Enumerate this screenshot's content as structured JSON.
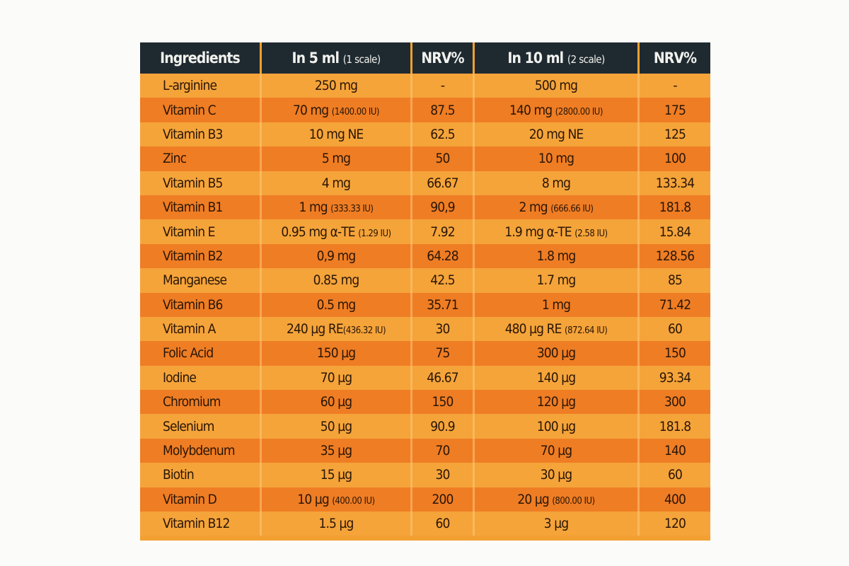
{
  "table": {
    "headers": [
      {
        "main": "Ingredients",
        "sub": ""
      },
      {
        "main": "In 5 ml ",
        "sub": "(1 scale)"
      },
      {
        "main": "NRV%",
        "sub": ""
      },
      {
        "main": "In 10 ml ",
        "sub": "(2 scale)"
      },
      {
        "main": "NRV%",
        "sub": ""
      }
    ],
    "rows": [
      {
        "ingredient": "L-arginine",
        "amount5": "250 mg",
        "amount5_note": "",
        "nrv5": "-",
        "amount10": "500 mg",
        "amount10_note": "",
        "nrv10": "-"
      },
      {
        "ingredient": "Vitamin C",
        "amount5": "70 mg ",
        "amount5_note": "(1400.00 IU)",
        "nrv5": "87.5",
        "amount10": "140 mg ",
        "amount10_note": "(2800.00 IU)",
        "nrv10": "175"
      },
      {
        "ingredient": "Vitamin B3",
        "amount5": "10 mg NE",
        "amount5_note": "",
        "nrv5": "62.5",
        "amount10": "20 mg NE",
        "amount10_note": "",
        "nrv10": "125"
      },
      {
        "ingredient": "Zinc",
        "amount5": "5 mg",
        "amount5_note": "",
        "nrv5": "50",
        "amount10": "10 mg",
        "amount10_note": "",
        "nrv10": "100"
      },
      {
        "ingredient": "Vitamin B5",
        "amount5": "4 mg",
        "amount5_note": "",
        "nrv5": "66.67",
        "amount10": "8 mg",
        "amount10_note": "",
        "nrv10": "133.34"
      },
      {
        "ingredient": "Vitamin B1",
        "amount5": "1 mg ",
        "amount5_note": "(333.33 IU)",
        "nrv5": "90,9",
        "amount10": "2 mg ",
        "amount10_note": "(666.66 IU)",
        "nrv10": "181.8"
      },
      {
        "ingredient": "Vitamin E",
        "amount5": "0.95 mg α-TE ",
        "amount5_note": "(1.29 IU)",
        "nrv5": "7.92",
        "amount10": "1.9 mg α-TE ",
        "amount10_note": "(2.58 IU)",
        "nrv10": "15.84"
      },
      {
        "ingredient": "Vitamin B2",
        "amount5": "0,9 mg",
        "amount5_note": "",
        "nrv5": "64.28",
        "amount10": "1.8 mg",
        "amount10_note": "",
        "nrv10": "128.56"
      },
      {
        "ingredient": "Manganese",
        "amount5": "0.85 mg",
        "amount5_note": "",
        "nrv5": "42.5",
        "amount10": "1.7 mg",
        "amount10_note": "",
        "nrv10": "85"
      },
      {
        "ingredient": "Vitamin B6",
        "amount5": "0.5 mg",
        "amount5_note": "",
        "nrv5": "35.71",
        "amount10": "1 mg",
        "amount10_note": "",
        "nrv10": "71.42"
      },
      {
        "ingredient": "Vitamin A",
        "amount5": "240 µg RE",
        "amount5_note": "(436.32 IU)",
        "nrv5": "30",
        "amount10": "480 µg RE ",
        "amount10_note": "(872.64 IU)",
        "nrv10": "60"
      },
      {
        "ingredient": "Folic Acid",
        "amount5": "150 µg",
        "amount5_note": "",
        "nrv5": "75",
        "amount10": "300 µg",
        "amount10_note": "",
        "nrv10": "150"
      },
      {
        "ingredient": "Iodine",
        "amount5": "70 µg",
        "amount5_note": "",
        "nrv5": "46.67",
        "amount10": "140 µg",
        "amount10_note": "",
        "nrv10": "93.34"
      },
      {
        "ingredient": "Chromium",
        "amount5": "60 µg",
        "amount5_note": "",
        "nrv5": "150",
        "amount10": "120 µg",
        "amount10_note": "",
        "nrv10": "300"
      },
      {
        "ingredient": "Selenium",
        "amount5": "50 µg",
        "amount5_note": "",
        "nrv5": "90.9",
        "amount10": "100 µg",
        "amount10_note": "",
        "nrv10": "181.8"
      },
      {
        "ingredient": "Molybdenum",
        "amount5": "35 µg",
        "amount5_note": "",
        "nrv5": "70",
        "amount10": "70 µg",
        "amount10_note": "",
        "nrv10": "140"
      },
      {
        "ingredient": "Biotin",
        "amount5": "15 µg",
        "amount5_note": "",
        "nrv5": "30",
        "amount10": "30 µg",
        "amount10_note": "",
        "nrv10": "60"
      },
      {
        "ingredient": "Vitamin D",
        "amount5": "10 µg ",
        "amount5_note": "(400.00 IU)",
        "nrv5": "200",
        "amount10": "20 µg ",
        "amount10_note": "(800.00 IU)",
        "nrv10": "400"
      },
      {
        "ingredient": "Vitamin B12",
        "amount5": "1.5 µg",
        "amount5_note": "",
        "nrv5": "60",
        "amount10": "3 µg",
        "amount10_note": "",
        "nrv10": "120"
      }
    ]
  }
}
